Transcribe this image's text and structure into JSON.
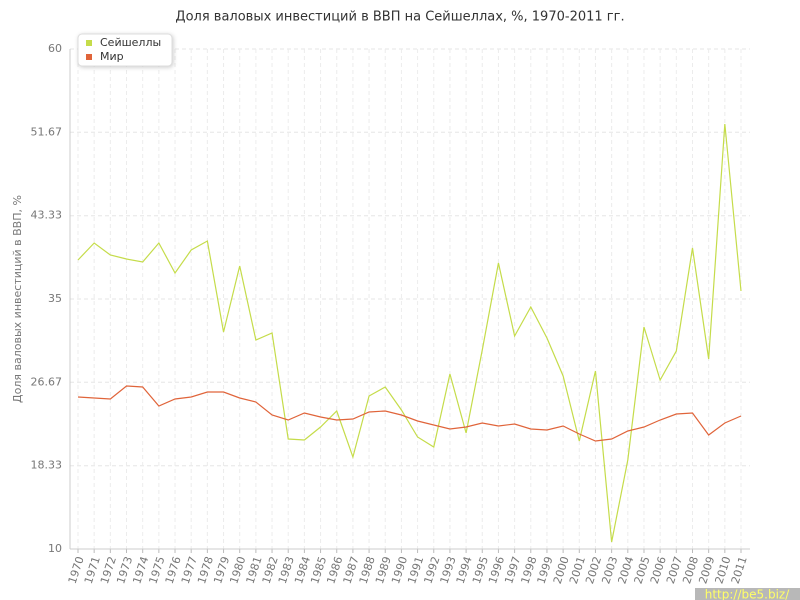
{
  "chart_data": {
    "type": "line",
    "title": "Доля валовых инвестиций в ВВП на Сейшеллах, %, 1970-2011 гг.",
    "y_label": "Доля валовых инвестиций в ВВП, %",
    "watermark": "http://be5.biz/",
    "categories": [
      "1970",
      "1971",
      "1972",
      "1973",
      "1974",
      "1975",
      "1976",
      "1977",
      "1978",
      "1979",
      "1980",
      "1981",
      "1982",
      "1983",
      "1984",
      "1985",
      "1986",
      "1987",
      "1988",
      "1989",
      "1990",
      "1991",
      "1992",
      "1993",
      "1994",
      "1995",
      "1996",
      "1997",
      "1998",
      "1999",
      "2000",
      "2001",
      "2002",
      "2003",
      "2004",
      "2005",
      "2006",
      "2007",
      "2008",
      "2009",
      "2010",
      "2011"
    ],
    "series": [
      {
        "name": "Сейшеллы",
        "color": "#c5dc4a",
        "values": [
          38.9,
          40.6,
          39.4,
          39.0,
          38.7,
          40.6,
          37.6,
          39.9,
          40.8,
          31.7,
          38.3,
          30.9,
          31.6,
          21.0,
          20.9,
          22.2,
          23.8,
          19.2,
          25.3,
          26.2,
          23.9,
          21.2,
          20.2,
          27.5,
          21.6,
          29.9,
          38.6,
          31.3,
          34.2,
          31.1,
          27.3,
          20.8,
          27.8,
          10.7,
          18.9,
          32.2,
          26.9,
          29.8,
          40.1,
          29.0,
          52.5,
          35.8
        ]
      },
      {
        "name": "Мир",
        "color": "#e0643a",
        "values": [
          25.2,
          25.1,
          25.0,
          26.3,
          26.2,
          24.3,
          25.0,
          25.2,
          25.7,
          25.7,
          25.1,
          24.7,
          23.4,
          22.9,
          23.6,
          23.2,
          22.9,
          23.0,
          23.7,
          23.8,
          23.4,
          22.8,
          22.4,
          22.0,
          22.2,
          22.6,
          22.3,
          22.5,
          22.0,
          21.9,
          22.3,
          21.5,
          20.8,
          21.0,
          21.8,
          22.2,
          22.9,
          23.5,
          23.6,
          21.4,
          22.6,
          23.3
        ]
      }
    ],
    "ylim": [
      10,
      60
    ],
    "yticks": [
      10,
      18.33,
      26.67,
      35,
      43.33,
      51.67,
      60
    ],
    "grid": true,
    "legend": "top-left"
  }
}
